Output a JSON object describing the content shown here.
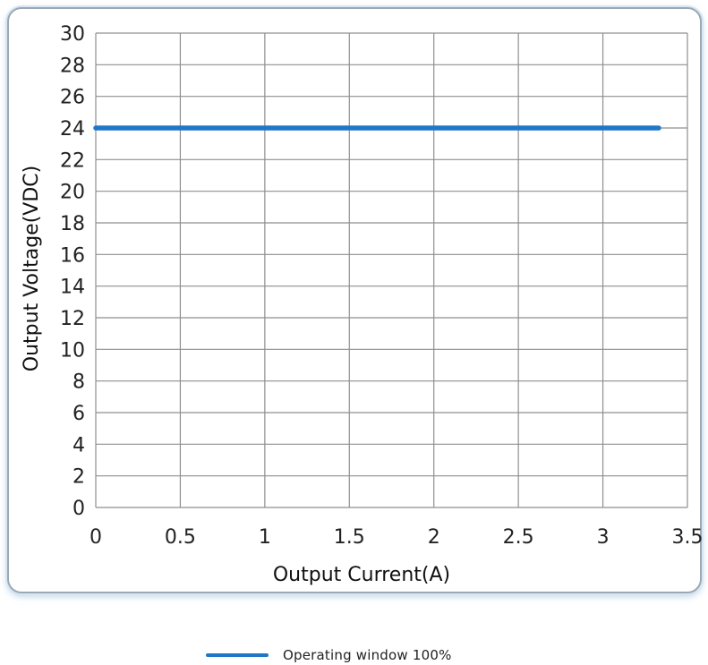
{
  "chart_data": {
    "type": "line",
    "title": "",
    "xlabel": "Output Current(A)",
    "ylabel": "Output Voltage(VDC)",
    "xlim": [
      0,
      3.5
    ],
    "ylim": [
      0,
      30
    ],
    "x_ticks": [
      0,
      0.5,
      1,
      1.5,
      2,
      2.5,
      3,
      3.5
    ],
    "x_tick_labels": [
      "0",
      "0.5",
      "1",
      "1.5",
      "2",
      "2.5",
      "3",
      "3.5"
    ],
    "y_ticks": [
      0,
      2,
      4,
      6,
      8,
      10,
      12,
      14,
      16,
      18,
      20,
      22,
      24,
      26,
      28,
      30
    ],
    "y_tick_labels": [
      "0",
      "2",
      "4",
      "6",
      "8",
      "10",
      "12",
      "14",
      "16",
      "18",
      "20",
      "22",
      "24",
      "26",
      "28",
      "30"
    ],
    "grid": true,
    "legend_position": "bottom-center",
    "series": [
      {
        "name": "Operating window 100%",
        "color": "#1f77c8",
        "x": [
          0,
          3.33
        ],
        "y": [
          24,
          24
        ]
      }
    ]
  },
  "colors": {
    "grid": "#8f8f8f",
    "frame_border": "#9aa9b4",
    "series_line": "#1f77c8"
  }
}
